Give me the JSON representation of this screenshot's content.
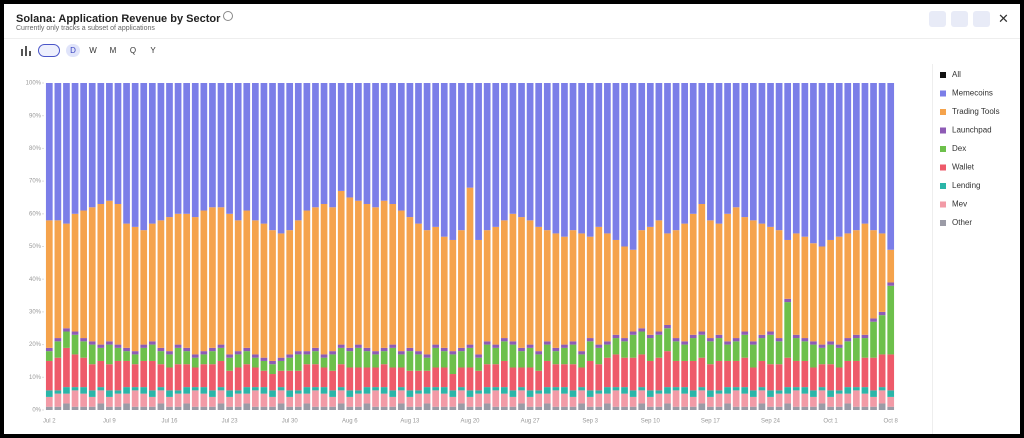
{
  "controls": {
    "intervals": [
      "D",
      "W",
      "M",
      "Q",
      "Y"
    ]
  },
  "chart_data": {
    "type": "stacked_bar_percent",
    "title": "Solana: Application Revenue by Sector",
    "subtitle": "Currently only tracks a subset of applications",
    "categories": [
      "Jul 2",
      null,
      null,
      null,
      null,
      null,
      null,
      "Jul 9",
      null,
      null,
      null,
      null,
      null,
      null,
      "Jul 16",
      null,
      null,
      null,
      null,
      null,
      null,
      "Jul 23",
      null,
      null,
      null,
      null,
      null,
      null,
      "Jul 30",
      null,
      null,
      null,
      null,
      null,
      null,
      "Aug 6",
      null,
      null,
      null,
      null,
      null,
      null,
      "Aug 13",
      null,
      null,
      null,
      null,
      null,
      null,
      "Aug 20",
      null,
      null,
      null,
      null,
      null,
      null,
      "Aug 27",
      null,
      null,
      null,
      null,
      null,
      null,
      "Sep 3",
      null,
      null,
      null,
      null,
      null,
      null,
      "Sep 10",
      null,
      null,
      null,
      null,
      null,
      null,
      "Sep 17",
      null,
      null,
      null,
      null,
      null,
      null,
      "Sep 24",
      null,
      null,
      null,
      null,
      null,
      null,
      "Oct 1",
      null,
      null,
      null,
      null,
      null,
      null,
      "Oct 8"
    ],
    "ylim": [
      0,
      100
    ],
    "yticks": [
      {
        "value": 0,
        "label": "0%"
      },
      {
        "value": 10,
        "label": "10%"
      },
      {
        "value": 20,
        "label": "20%"
      },
      {
        "value": 30,
        "label": "30%"
      },
      {
        "value": 40,
        "label": "40%"
      },
      {
        "value": 50,
        "label": "50%"
      },
      {
        "value": 60,
        "label": "60%"
      },
      {
        "value": 70,
        "label": "70%"
      },
      {
        "value": 80,
        "label": "80%"
      },
      {
        "value": 90,
        "label": "90%"
      },
      {
        "value": 100,
        "label": "100%"
      }
    ],
    "series": [
      {
        "name": "All",
        "color": "#111111",
        "values": [
          0,
          0,
          0,
          0,
          0,
          0,
          0,
          0,
          0,
          0,
          0,
          0,
          0,
          0,
          0,
          0,
          0,
          0,
          0,
          0,
          0,
          0,
          0,
          0,
          0,
          0,
          0,
          0,
          0,
          0,
          0,
          0,
          0,
          0,
          0,
          0,
          0,
          0,
          0,
          0,
          0,
          0,
          0,
          0,
          0,
          0,
          0,
          0,
          0,
          0,
          0,
          0,
          0,
          0,
          0,
          0,
          0,
          0,
          0,
          0,
          0,
          0,
          0,
          0,
          0,
          0,
          0,
          0,
          0,
          0,
          0,
          0,
          0,
          0,
          0,
          0,
          0,
          0,
          0,
          0,
          0,
          0,
          0,
          0,
          0,
          0,
          0,
          0,
          0,
          0,
          0,
          0,
          0,
          0,
          0,
          0,
          0,
          0,
          0
        ]
      },
      {
        "name": "Memecoins",
        "color": "#7b7ee8",
        "values": [
          42,
          42,
          43,
          40,
          39,
          38,
          37,
          36,
          37,
          43,
          44,
          45,
          43,
          42,
          41,
          40,
          40,
          41,
          39,
          38,
          38,
          40,
          42,
          39,
          42,
          43,
          45,
          46,
          45,
          42,
          39,
          38,
          37,
          38,
          33,
          35,
          36,
          37,
          38,
          36,
          37,
          39,
          41,
          43,
          45,
          44,
          47,
          48,
          45,
          32,
          48,
          45,
          44,
          42,
          40,
          41,
          42,
          44,
          45,
          46,
          47,
          45,
          46,
          47,
          44,
          46,
          48,
          50,
          51,
          45,
          44,
          42,
          46,
          45,
          43,
          40,
          37,
          42,
          43,
          40,
          38,
          41,
          42,
          43,
          44,
          45,
          48,
          46,
          47,
          49,
          50,
          48,
          47,
          46,
          45,
          43,
          45,
          46,
          51
        ]
      },
      {
        "name": "Trading Tools",
        "color": "#f5a34c",
        "values": [
          39,
          36,
          32,
          36,
          39,
          41,
          43,
          43,
          43,
          38,
          38,
          35,
          36,
          39,
          41,
          40,
          41,
          42,
          43,
          43,
          42,
          43,
          40,
          42,
          41,
          41,
          40,
          38,
          38,
          40,
          43,
          43,
          46,
          44,
          47,
          46,
          44,
          44,
          44,
          45,
          43,
          43,
          40,
          39,
          38,
          36,
          34,
          34,
          36,
          48,
          35,
          34,
          36,
          36,
          39,
          40,
          38,
          38,
          34,
          35,
          33,
          34,
          36,
          31,
          36,
          33,
          29,
          28,
          25,
          30,
          33,
          34,
          28,
          33,
          36,
          37,
          39,
          36,
          34,
          39,
          40,
          35,
          37,
          34,
          32,
          33,
          18,
          31,
          31,
          30,
          30,
          31,
          33,
          32,
          32,
          34,
          27,
          24,
          10
        ]
      },
      {
        "name": "Launchpad",
        "color": "#8e5bb5",
        "values": [
          1,
          1,
          1,
          1,
          1,
          1,
          1,
          1,
          1,
          1,
          1,
          1,
          1,
          1,
          1,
          1,
          1,
          1,
          1,
          1,
          1,
          1,
          1,
          1,
          1,
          1,
          1,
          1,
          1,
          1,
          1,
          1,
          1,
          1,
          1,
          1,
          1,
          1,
          1,
          1,
          1,
          1,
          1,
          1,
          1,
          1,
          1,
          1,
          1,
          1,
          1,
          1,
          1,
          1,
          1,
          1,
          1,
          1,
          1,
          1,
          1,
          1,
          1,
          1,
          1,
          1,
          1,
          1,
          1,
          1,
          1,
          1,
          1,
          1,
          1,
          1,
          1,
          1,
          1,
          1,
          1,
          1,
          1,
          1,
          1,
          1,
          1,
          1,
          1,
          1,
          1,
          1,
          1,
          1,
          1,
          1,
          1,
          1,
          1
        ]
      },
      {
        "name": "Dex",
        "color": "#6dc04b",
        "values": [
          3,
          5,
          5,
          6,
          5,
          6,
          4,
          6,
          4,
          3,
          3,
          4,
          5,
          4,
          4,
          5,
          4,
          3,
          3,
          4,
          4,
          4,
          4,
          4,
          3,
          3,
          3,
          3,
          4,
          5,
          3,
          4,
          3,
          5,
          5,
          5,
          6,
          5,
          4,
          4,
          6,
          4,
          6,
          5,
          4,
          6,
          5,
          6,
          5,
          6,
          4,
          6,
          5,
          6,
          7,
          5,
          6,
          5,
          5,
          4,
          5,
          6,
          4,
          6,
          5,
          4,
          5,
          5,
          7,
          7,
          7,
          7,
          7,
          6,
          5,
          7,
          7,
          7,
          7,
          5,
          6,
          7,
          7,
          7,
          9,
          7,
          17,
          7,
          6,
          7,
          5,
          6,
          6,
          6,
          7,
          6,
          11,
          12,
          21
        ]
      },
      {
        "name": "Wallet",
        "color": "#ee5a6a",
        "values": [
          9,
          10,
          12,
          10,
          9,
          8,
          8,
          8,
          9,
          8,
          7,
          8,
          9,
          7,
          7,
          8,
          7,
          6,
          7,
          8,
          8,
          6,
          7,
          7,
          6,
          5,
          5,
          5,
          6,
          6,
          7,
          7,
          6,
          6,
          7,
          7,
          7,
          6,
          6,
          7,
          7,
          6,
          6,
          6,
          5,
          6,
          6,
          5,
          6,
          7,
          6,
          7,
          7,
          8,
          7,
          6,
          7,
          6,
          8,
          7,
          7,
          8,
          6,
          9,
          8,
          9,
          10,
          9,
          10,
          10,
          9,
          10,
          11,
          8,
          8,
          9,
          9,
          8,
          9,
          8,
          8,
          9,
          7,
          8,
          8,
          8,
          9,
          8,
          8,
          7,
          7,
          8,
          7,
          8,
          8,
          9,
          10,
          10,
          11
        ]
      },
      {
        "name": "Lending",
        "color": "#2bb5a8",
        "values": [
          2,
          1,
          2,
          1,
          2,
          2,
          1,
          2,
          1,
          2,
          1,
          2,
          2,
          1,
          2,
          1,
          2,
          1,
          2,
          2,
          1,
          2,
          1,
          2,
          1,
          2,
          2,
          1,
          2,
          1,
          2,
          1,
          2,
          2,
          1,
          2,
          1,
          2,
          1,
          2,
          2,
          1,
          2,
          1,
          2,
          1,
          2,
          2,
          1,
          2,
          1,
          2,
          1,
          2,
          2,
          1,
          2,
          1,
          2,
          1,
          2,
          2,
          1,
          2,
          1,
          2,
          1,
          2,
          2,
          1,
          2,
          1,
          2,
          1,
          2,
          2,
          1,
          2,
          1,
          2,
          1,
          2,
          2,
          1,
          2,
          1,
          2,
          1,
          2,
          2,
          1,
          2,
          1,
          2,
          1,
          2,
          2,
          1,
          2
        ]
      },
      {
        "name": "Mev",
        "color": "#f29aa6",
        "values": [
          3,
          4,
          3,
          5,
          4,
          3,
          4,
          3,
          4,
          3,
          5,
          4,
          3,
          4,
          3,
          4,
          3,
          5,
          4,
          3,
          4,
          3,
          4,
          3,
          5,
          4,
          3,
          4,
          3,
          4,
          3,
          5,
          4,
          3,
          4,
          3,
          4,
          3,
          5,
          4,
          3,
          4,
          3,
          4,
          3,
          5,
          4,
          3,
          4,
          3,
          4,
          3,
          5,
          4,
          3,
          4,
          3,
          4,
          3,
          5,
          4,
          3,
          4,
          3,
          4,
          3,
          5,
          4,
          3,
          4,
          3,
          4,
          3,
          5,
          4,
          3,
          4,
          3,
          4,
          3,
          5,
          4,
          3,
          4,
          3,
          4,
          3,
          5,
          4,
          3,
          4,
          3,
          4,
          3,
          5,
          4,
          3,
          4,
          3
        ]
      },
      {
        "name": "Other",
        "color": "#9b9ba6",
        "values": [
          1,
          1,
          2,
          1,
          1,
          1,
          2,
          1,
          1,
          2,
          1,
          1,
          1,
          2,
          1,
          1,
          2,
          1,
          1,
          1,
          2,
          1,
          1,
          2,
          1,
          1,
          1,
          2,
          1,
          1,
          2,
          1,
          1,
          1,
          2,
          1,
          1,
          2,
          1,
          1,
          1,
          2,
          1,
          1,
          2,
          1,
          1,
          1,
          2,
          1,
          1,
          2,
          1,
          1,
          1,
          2,
          1,
          1,
          2,
          1,
          1,
          1,
          2,
          1,
          1,
          2,
          1,
          1,
          1,
          2,
          1,
          1,
          2,
          1,
          1,
          1,
          2,
          1,
          1,
          2,
          1,
          1,
          1,
          2,
          1,
          1,
          2,
          1,
          1,
          1,
          2,
          1,
          1,
          2,
          1,
          1,
          1,
          2,
          1
        ]
      }
    ]
  }
}
